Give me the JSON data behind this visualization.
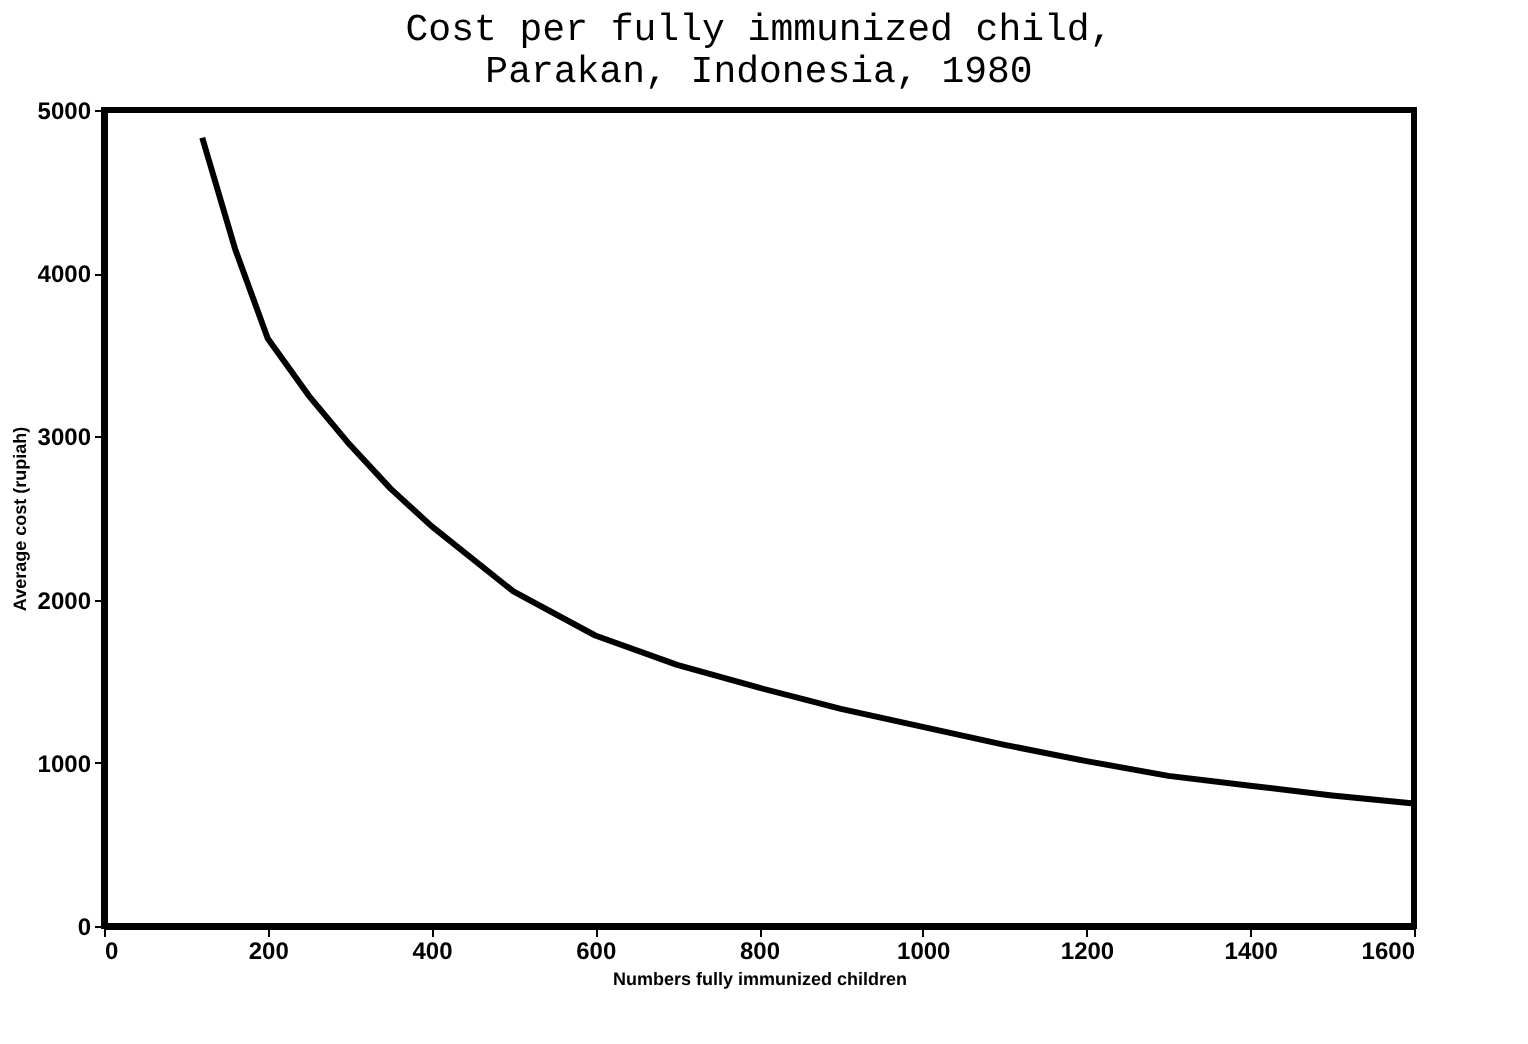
{
  "chart_data": {
    "type": "line",
    "title": [
      "Cost per fully immunized child,",
      "Parakan, Indonesia, 1980"
    ],
    "xlabel": "Numbers fully immunized children",
    "ylabel": "Average cost (rupiah)",
    "x": [
      120,
      160,
      200,
      250,
      300,
      350,
      400,
      500,
      600,
      700,
      800,
      900,
      1000,
      1100,
      1200,
      1300,
      1400,
      1500,
      1600
    ],
    "series": [
      {
        "color": "#000000",
        "values": [
          4830,
          4150,
          3600,
          3250,
          2950,
          2680,
          2450,
          2050,
          1780,
          1600,
          1460,
          1330,
          1220,
          1110,
          1010,
          920,
          860,
          800,
          750
        ]
      }
    ],
    "xlim": [
      0,
      1600
    ],
    "xticks": [
      0,
      200,
      400,
      600,
      800,
      1000,
      1200,
      1400,
      1600
    ],
    "ylim": [
      0,
      5000
    ],
    "yticks": [
      0,
      1000,
      2000,
      3000,
      4000,
      5000
    ],
    "grid": false,
    "legend": false,
    "marker": "none",
    "line_style": "solid"
  }
}
